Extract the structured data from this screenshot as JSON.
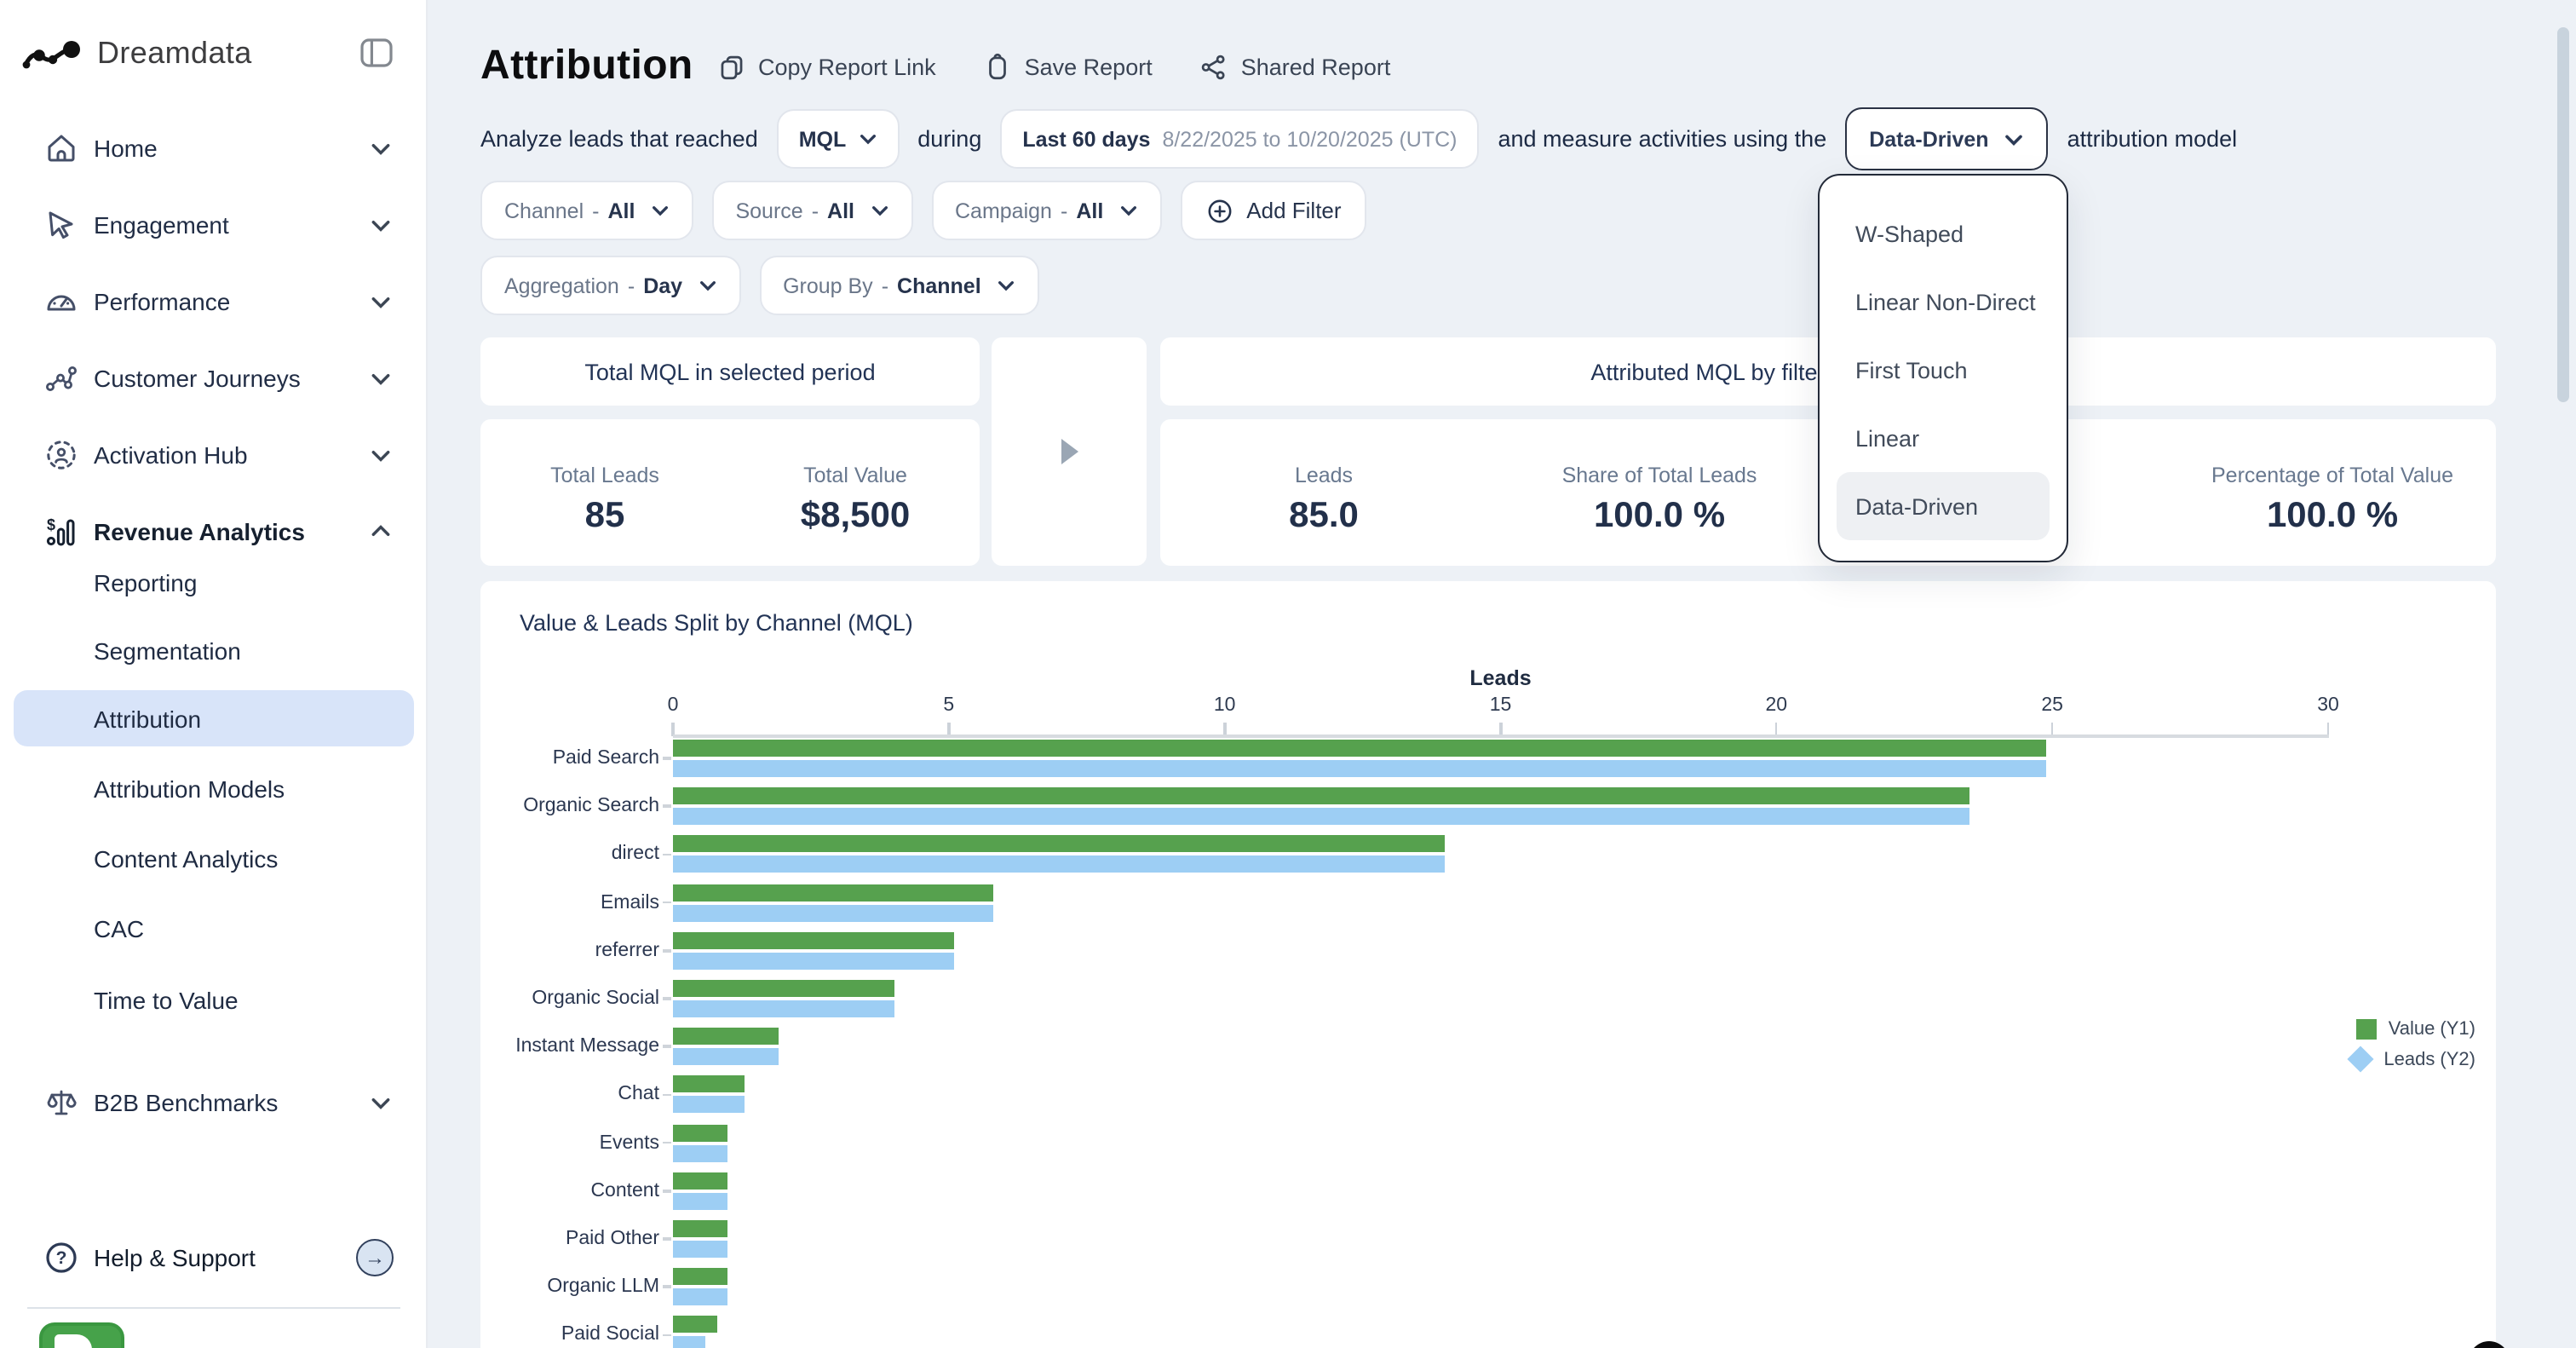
{
  "brand": {
    "name": "Dreamdata"
  },
  "sidebar": {
    "items": [
      {
        "label": "Home",
        "icon": "home-icon",
        "chevron": "down"
      },
      {
        "label": "Engagement",
        "icon": "cursor-icon",
        "chevron": "down"
      },
      {
        "label": "Performance",
        "icon": "gauge-icon",
        "chevron": "down"
      },
      {
        "label": "Customer Journeys",
        "icon": "journey-icon",
        "chevron": "down"
      },
      {
        "label": "Activation Hub",
        "icon": "activation-icon",
        "chevron": "down"
      },
      {
        "label": "Revenue Analytics",
        "icon": "revenue-icon",
        "chevron": "up",
        "bold": true
      },
      {
        "label": "B2B Benchmarks",
        "icon": "scales-icon",
        "chevron": "down"
      }
    ],
    "revenue_children": [
      "Reporting",
      "Segmentation",
      "Attribution",
      "Attribution Models",
      "Content Analytics",
      "CAC",
      "Time to Value"
    ],
    "active_child": "Attribution",
    "help_label": "Help & Support"
  },
  "header": {
    "title": "Attribution",
    "actions": [
      {
        "label": "Copy Report Link",
        "icon": "copy-icon"
      },
      {
        "label": "Save Report",
        "icon": "bookmark-icon"
      },
      {
        "label": "Shared Report",
        "icon": "share-icon"
      }
    ]
  },
  "query": {
    "prefix": "Analyze leads that reached",
    "stage": "MQL",
    "during": "during",
    "date_main": "Last 60 days",
    "date_range": "8/22/2025 to 10/20/2025 (UTC)",
    "middle": "and measure activities using the",
    "model": "Data-Driven",
    "suffix": "attribution model"
  },
  "filters": {
    "row1": [
      {
        "label": "Channel",
        "value": "All"
      },
      {
        "label": "Source",
        "value": "All"
      },
      {
        "label": "Campaign",
        "value": "All"
      }
    ],
    "add_filter_label": "Add Filter",
    "row2": [
      {
        "label": "Aggregation",
        "value": "Day"
      },
      {
        "label": "Group By",
        "value": "Channel"
      }
    ]
  },
  "model_dropdown": {
    "options": [
      "W-Shaped",
      "Linear Non-Direct",
      "First Touch",
      "Linear",
      "Data-Driven"
    ],
    "selected": "Data-Driven"
  },
  "summary": {
    "left_title": "Total MQL in selected period",
    "right_title": "Attributed MQL by filter selection - Data-Driven",
    "left_stats": [
      {
        "label": "Total Leads",
        "value": "85"
      },
      {
        "label": "Total Value",
        "value": "$8,500"
      }
    ],
    "right_stats": [
      {
        "label": "Leads",
        "value": "85.0"
      },
      {
        "label": "Share of Total Leads",
        "value": "100.0 %"
      },
      {
        "label": "Percentage of Total Value",
        "value": "100.0 %"
      }
    ]
  },
  "chart_data": {
    "type": "bar",
    "orientation": "horizontal",
    "title": "Value & Leads Split by Channel (MQL)",
    "axis_label": "Leads",
    "x_ticks": [
      0,
      5,
      10,
      15,
      20,
      25,
      30
    ],
    "xlim": [
      0,
      30
    ],
    "grid": false,
    "legend_position": "right",
    "categories": [
      "Paid Search",
      "Organic Search",
      "direct",
      "Emails",
      "referrer",
      "Organic Social",
      "Instant Message",
      "Chat",
      "Events",
      "Content",
      "Paid Other",
      "Organic LLM",
      "Paid Social"
    ],
    "series": [
      {
        "name": "Value (Y1)",
        "color": "#56a14e",
        "marker": "square",
        "values": [
          24.9,
          23.5,
          14.0,
          5.8,
          5.1,
          4.0,
          1.9,
          1.3,
          1.0,
          1.0,
          1.0,
          1.0,
          0.8
        ]
      },
      {
        "name": "Leads (Y2)",
        "color": "#9dcef4",
        "marker": "diamond",
        "values": [
          24.9,
          23.5,
          14.0,
          5.8,
          5.1,
          4.0,
          1.9,
          1.3,
          1.0,
          1.0,
          1.0,
          1.0,
          0.6
        ]
      }
    ]
  }
}
